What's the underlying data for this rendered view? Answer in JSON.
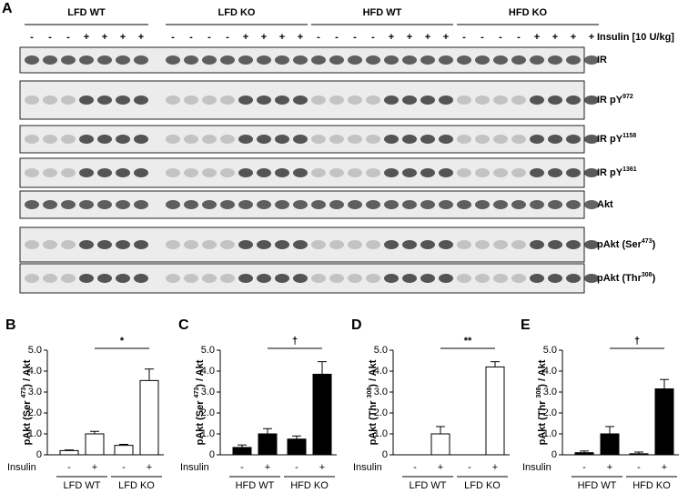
{
  "figure_label": "A",
  "blot": {
    "groups": [
      "LFD WT",
      "LFD KO",
      "HFD WT",
      "HFD KO"
    ],
    "signs": [
      [
        "-",
        "-",
        "-",
        "+",
        "+",
        "+",
        "+"
      ],
      [
        "-",
        "-",
        "-",
        "-",
        "+",
        "+",
        "+",
        "+"
      ],
      [
        "-",
        "-",
        "-",
        "-",
        "+",
        "+",
        "+",
        "+"
      ],
      [
        "-",
        "-",
        "-",
        "-",
        "+",
        "+",
        "+",
        "+"
      ]
    ],
    "treatment": "Insulin [10 U/kg]",
    "rows": [
      {
        "label": "IR"
      },
      {
        "label": "IR pY",
        "sup": "972"
      },
      {
        "label": "IR pY",
        "sup": "1158"
      },
      {
        "label": "IR pY",
        "sup": "1361"
      },
      {
        "label": "Akt"
      },
      {
        "label": "pAkt  (Ser",
        "sup": "473",
        "end": ")"
      },
      {
        "label": "pAkt  (Thr",
        "sup": "308",
        "end": ")"
      }
    ]
  },
  "chart_data": [
    {
      "type": "bar",
      "panel": "B",
      "ylabel": [
        "pAkt (Ser ",
        "473",
        ") / Akt"
      ],
      "xlabel": "Insulin",
      "categories": [
        "-",
        "+",
        "-",
        "+"
      ],
      "groups": [
        "LFD WT",
        "LFD KO"
      ],
      "values": [
        0.2,
        1.0,
        0.45,
        3.55
      ],
      "errors": [
        0.03,
        0.12,
        0.05,
        0.55
      ],
      "color": "#ffffff",
      "annotation": "*",
      "ylim": [
        0,
        5
      ],
      "yticks": [
        0,
        {
          "value": 1,
          "label": "1.0"
        },
        {
          "value": 2,
          "label": "2.0"
        },
        {
          "value": 3,
          "label": "3.0"
        },
        {
          "value": 4,
          "label": "4.0"
        },
        {
          "value": 5,
          "label": "5.0"
        }
      ]
    },
    {
      "type": "bar",
      "panel": "C",
      "ylabel": [
        "pAkt (Ser ",
        "473",
        ") / Akt"
      ],
      "xlabel": "Insulin",
      "categories": [
        "-",
        "+",
        "-",
        "+"
      ],
      "groups": [
        "HFD WT",
        "HFD KO"
      ],
      "values": [
        0.35,
        1.0,
        0.75,
        3.85
      ],
      "errors": [
        0.12,
        0.25,
        0.15,
        0.6
      ],
      "color": "#000000",
      "annotation": "†",
      "ylim": [
        0,
        5
      ],
      "yticks": [
        0,
        {
          "value": 1,
          "label": "1.0"
        },
        {
          "value": 2,
          "label": "2.0"
        },
        {
          "value": 3,
          "label": "3.0"
        },
        {
          "value": 4,
          "label": "4.0"
        },
        {
          "value": 5,
          "label": "5.0"
        }
      ]
    },
    {
      "type": "bar",
      "panel": "D",
      "ylabel": [
        "pAkt (Thr ",
        "308",
        ") / Akt"
      ],
      "xlabel": "Insulin",
      "categories": [
        "-",
        "+",
        "-",
        "+"
      ],
      "groups": [
        "LFD WT",
        "LFD KO"
      ],
      "values": [
        null,
        1.0,
        null,
        4.2
      ],
      "errors": [
        null,
        0.35,
        null,
        0.25
      ],
      "color": "#ffffff",
      "annotation": "**",
      "ylim": [
        0,
        5
      ],
      "yticks": [
        0,
        {
          "value": 1,
          "label": "1.0"
        },
        {
          "value": 2,
          "label": "2.0"
        },
        {
          "value": 3,
          "label": "3.0"
        },
        {
          "value": 4,
          "label": "4.0"
        },
        {
          "value": 5,
          "label": "5.0"
        }
      ]
    },
    {
      "type": "bar",
      "panel": "E",
      "ylabel": [
        "pAkt (Thr ",
        "308",
        ") / Akt"
      ],
      "xlabel": "Insulin",
      "categories": [
        "-",
        "+",
        "-",
        "+"
      ],
      "groups": [
        "HFD WT",
        "HFD KO"
      ],
      "values": [
        0.1,
        1.0,
        0.05,
        3.15
      ],
      "errors": [
        0.08,
        0.35,
        0.08,
        0.45
      ],
      "color": "#000000",
      "annotation": "†",
      "ylim": [
        0,
        5
      ],
      "yticks": [
        0,
        {
          "value": 1,
          "label": "1.0"
        },
        {
          "value": 2,
          "label": "2.0"
        },
        {
          "value": 3,
          "label": "3.0"
        },
        {
          "value": 4,
          "label": "4.0"
        },
        {
          "value": 5,
          "label": "5.0"
        }
      ]
    }
  ]
}
